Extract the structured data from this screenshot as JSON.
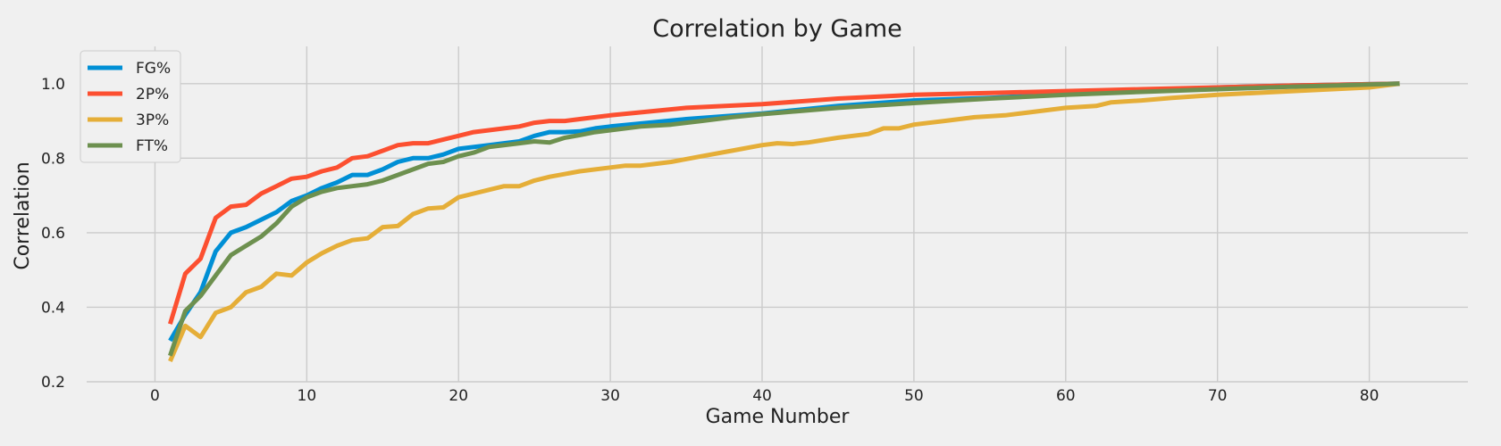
{
  "chart_data": {
    "type": "line",
    "title": "Correlation by Game",
    "xlabel": "Game Number",
    "ylabel": "Correlation",
    "xlim": [
      -4.5,
      86.5
    ],
    "ylim": [
      0.2,
      1.1
    ],
    "xticks": [
      0,
      10,
      20,
      30,
      40,
      50,
      60,
      70,
      80
    ],
    "xtick_labels": [
      "0",
      "10",
      "20",
      "30",
      "40",
      "50",
      "60",
      "70",
      "80"
    ],
    "yticks": [
      0.2,
      0.4,
      0.6,
      0.8,
      1.0
    ],
    "ytick_labels": [
      "0.2",
      "0.4",
      "0.6",
      "0.8",
      "1.0"
    ],
    "grid": true,
    "legend_position": "top-left",
    "series": [
      {
        "name": "FG%",
        "color": "#008fd5",
        "points": [
          [
            1,
            0.31
          ],
          [
            2,
            0.38
          ],
          [
            3,
            0.44
          ],
          [
            4,
            0.55
          ],
          [
            5,
            0.6
          ],
          [
            6,
            0.615
          ],
          [
            8,
            0.655
          ],
          [
            9,
            0.685
          ],
          [
            10,
            0.7
          ],
          [
            11,
            0.72
          ],
          [
            12,
            0.735
          ],
          [
            13,
            0.755
          ],
          [
            14,
            0.755
          ],
          [
            15,
            0.77
          ],
          [
            16,
            0.79
          ],
          [
            17,
            0.8
          ],
          [
            18,
            0.8
          ],
          [
            19,
            0.81
          ],
          [
            20,
            0.825
          ],
          [
            22,
            0.835
          ],
          [
            24,
            0.845
          ],
          [
            25,
            0.86
          ],
          [
            26,
            0.87
          ],
          [
            27,
            0.87
          ],
          [
            28,
            0.872
          ],
          [
            29,
            0.88
          ],
          [
            30,
            0.885
          ],
          [
            35,
            0.905
          ],
          [
            40,
            0.92
          ],
          [
            45,
            0.94
          ],
          [
            50,
            0.955
          ],
          [
            55,
            0.962
          ],
          [
            60,
            0.972
          ],
          [
            65,
            0.98
          ],
          [
            70,
            0.99
          ],
          [
            75,
            0.995
          ],
          [
            82,
            1.0
          ]
        ]
      },
      {
        "name": "2P%",
        "color": "#fc4f30",
        "points": [
          [
            1,
            0.355
          ],
          [
            2,
            0.49
          ],
          [
            3,
            0.53
          ],
          [
            4,
            0.64
          ],
          [
            5,
            0.67
          ],
          [
            6,
            0.675
          ],
          [
            7,
            0.705
          ],
          [
            8,
            0.725
          ],
          [
            9,
            0.745
          ],
          [
            10,
            0.75
          ],
          [
            11,
            0.765
          ],
          [
            12,
            0.775
          ],
          [
            13,
            0.8
          ],
          [
            14,
            0.805
          ],
          [
            15,
            0.82
          ],
          [
            16,
            0.835
          ],
          [
            17,
            0.84
          ],
          [
            18,
            0.84
          ],
          [
            19,
            0.85
          ],
          [
            20,
            0.86
          ],
          [
            21,
            0.87
          ],
          [
            22,
            0.875
          ],
          [
            23,
            0.88
          ],
          [
            24,
            0.885
          ],
          [
            25,
            0.895
          ],
          [
            26,
            0.9
          ],
          [
            27,
            0.9
          ],
          [
            28,
            0.905
          ],
          [
            29,
            0.91
          ],
          [
            30,
            0.915
          ],
          [
            35,
            0.935
          ],
          [
            40,
            0.945
          ],
          [
            45,
            0.96
          ],
          [
            50,
            0.97
          ],
          [
            55,
            0.975
          ],
          [
            60,
            0.98
          ],
          [
            65,
            0.985
          ],
          [
            70,
            0.99
          ],
          [
            75,
            0.995
          ],
          [
            82,
            1.0
          ]
        ]
      },
      {
        "name": "3P%",
        "color": "#e5ae38",
        "points": [
          [
            1,
            0.255
          ],
          [
            2,
            0.35
          ],
          [
            3,
            0.32
          ],
          [
            4,
            0.385
          ],
          [
            5,
            0.4
          ],
          [
            6,
            0.44
          ],
          [
            7,
            0.455
          ],
          [
            8,
            0.49
          ],
          [
            9,
            0.485
          ],
          [
            10,
            0.52
          ],
          [
            11,
            0.545
          ],
          [
            12,
            0.565
          ],
          [
            13,
            0.58
          ],
          [
            14,
            0.585
          ],
          [
            15,
            0.615
          ],
          [
            16,
            0.618
          ],
          [
            17,
            0.65
          ],
          [
            18,
            0.665
          ],
          [
            19,
            0.668
          ],
          [
            20,
            0.695
          ],
          [
            21,
            0.705
          ],
          [
            22,
            0.715
          ],
          [
            23,
            0.725
          ],
          [
            24,
            0.725
          ],
          [
            25,
            0.74
          ],
          [
            26,
            0.75
          ],
          [
            28,
            0.765
          ],
          [
            30,
            0.775
          ],
          [
            31,
            0.78
          ],
          [
            32,
            0.78
          ],
          [
            33,
            0.785
          ],
          [
            34,
            0.79
          ],
          [
            36,
            0.805
          ],
          [
            38,
            0.82
          ],
          [
            40,
            0.835
          ],
          [
            41,
            0.84
          ],
          [
            42,
            0.838
          ],
          [
            43,
            0.842
          ],
          [
            45,
            0.855
          ],
          [
            47,
            0.865
          ],
          [
            48,
            0.88
          ],
          [
            49,
            0.88
          ],
          [
            50,
            0.89
          ],
          [
            52,
            0.9
          ],
          [
            54,
            0.91
          ],
          [
            56,
            0.915
          ],
          [
            58,
            0.925
          ],
          [
            60,
            0.935
          ],
          [
            62,
            0.94
          ],
          [
            63,
            0.95
          ],
          [
            65,
            0.955
          ],
          [
            67,
            0.962
          ],
          [
            70,
            0.97
          ],
          [
            75,
            0.98
          ],
          [
            80,
            0.99
          ],
          [
            82,
            1.0
          ]
        ]
      },
      {
        "name": "FT%",
        "color": "#6d904f",
        "points": [
          [
            1,
            0.27
          ],
          [
            2,
            0.39
          ],
          [
            3,
            0.43
          ],
          [
            4,
            0.485
          ],
          [
            5,
            0.54
          ],
          [
            6,
            0.565
          ],
          [
            7,
            0.59
          ],
          [
            8,
            0.625
          ],
          [
            9,
            0.67
          ],
          [
            10,
            0.695
          ],
          [
            11,
            0.71
          ],
          [
            12,
            0.72
          ],
          [
            13,
            0.725
          ],
          [
            14,
            0.73
          ],
          [
            15,
            0.74
          ],
          [
            16,
            0.755
          ],
          [
            17,
            0.77
          ],
          [
            18,
            0.785
          ],
          [
            19,
            0.79
          ],
          [
            20,
            0.805
          ],
          [
            21,
            0.815
          ],
          [
            22,
            0.83
          ],
          [
            24,
            0.84
          ],
          [
            25,
            0.845
          ],
          [
            26,
            0.842
          ],
          [
            27,
            0.855
          ],
          [
            28,
            0.862
          ],
          [
            29,
            0.87
          ],
          [
            30,
            0.875
          ],
          [
            32,
            0.885
          ],
          [
            34,
            0.89
          ],
          [
            36,
            0.9
          ],
          [
            38,
            0.91
          ],
          [
            40,
            0.918
          ],
          [
            45,
            0.935
          ],
          [
            50,
            0.948
          ],
          [
            55,
            0.96
          ],
          [
            60,
            0.97
          ],
          [
            65,
            0.978
          ],
          [
            70,
            0.985
          ],
          [
            75,
            0.992
          ],
          [
            82,
            1.0
          ]
        ]
      }
    ]
  }
}
